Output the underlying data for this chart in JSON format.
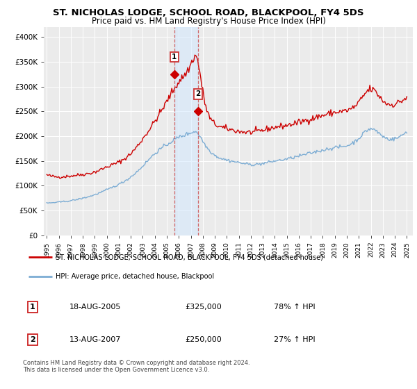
{
  "title": "ST. NICHOLAS LODGE, SCHOOL ROAD, BLACKPOOL, FY4 5DS",
  "subtitle": "Price paid vs. HM Land Registry's House Price Index (HPI)",
  "title_fontsize": 9.5,
  "subtitle_fontsize": 8.5,
  "ylabel_ticks": [
    "£0",
    "£50K",
    "£100K",
    "£150K",
    "£200K",
    "£250K",
    "£300K",
    "£350K",
    "£400K"
  ],
  "ytick_values": [
    0,
    50000,
    100000,
    150000,
    200000,
    250000,
    300000,
    350000,
    400000
  ],
  "ylim": [
    0,
    420000
  ],
  "xlim_start": 1994.75,
  "xlim_end": 2025.5,
  "x_tick_labels": [
    "1995",
    "1996",
    "1997",
    "1998",
    "1999",
    "2000",
    "2001",
    "2002",
    "2003",
    "2004",
    "2005",
    "2006",
    "2007",
    "2008",
    "2009",
    "2010",
    "2011",
    "2012",
    "2013",
    "2014",
    "2015",
    "2016",
    "2017",
    "2018",
    "2019",
    "2020",
    "2021",
    "2022",
    "2023",
    "2024",
    "2025"
  ],
  "background_color": "#ffffff",
  "plot_bg_color": "#ebebeb",
  "grid_color": "#ffffff",
  "red_line_color": "#cc0000",
  "blue_line_color": "#7dadd4",
  "sale1_x": 2005.63,
  "sale1_y": 325000,
  "sale1_label": "1",
  "sale2_x": 2007.62,
  "sale2_y": 250000,
  "sale2_label": "2",
  "vline1_x": 2005.63,
  "vline2_x": 2007.62,
  "shade_color": "#d0e8ff",
  "shade_alpha": 0.5,
  "legend_line1": "ST. NICHOLAS LODGE, SCHOOL ROAD, BLACKPOOL, FY4 5DS (detached house)",
  "legend_line2": "HPI: Average price, detached house, Blackpool",
  "table_row1": [
    "1",
    "18-AUG-2005",
    "£325,000",
    "78% ↑ HPI"
  ],
  "table_row2": [
    "2",
    "13-AUG-2007",
    "£250,000",
    "27% ↑ HPI"
  ],
  "footer": "Contains HM Land Registry data © Crown copyright and database right 2024.\nThis data is licensed under the Open Government Licence v3.0."
}
